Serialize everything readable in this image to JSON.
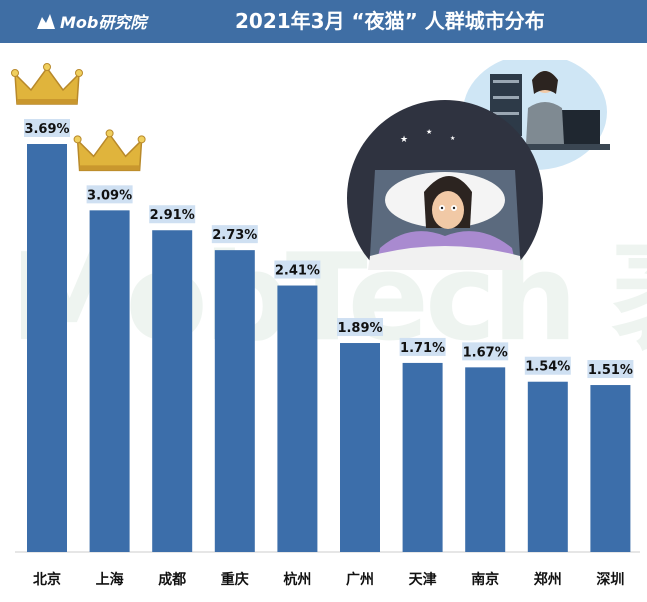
{
  "header": {
    "logo_text": "Mob研究院",
    "title": "2021年3月 “夜猫” 人群城市分布"
  },
  "watermark": {
    "text": "MobTech 袤博"
  },
  "colors": {
    "bar": "#3c6eaa",
    "header": "#3f6ea4",
    "label_bg": "#cfe0f2",
    "crown": "#e0b43c"
  },
  "chart_data": {
    "type": "bar",
    "title": "2021年3月 “夜猫” 人群城市分布",
    "categories": [
      "北京",
      "上海",
      "成都",
      "重庆",
      "杭州",
      "广州",
      "天津",
      "南京",
      "郑州",
      "深圳"
    ],
    "values": [
      3.69,
      3.09,
      2.91,
      2.73,
      2.41,
      1.89,
      1.71,
      1.67,
      1.54,
      1.51
    ],
    "value_labels": [
      "3.69%",
      "3.09%",
      "2.91%",
      "2.73%",
      "2.41%",
      "1.89%",
      "1.71%",
      "1.67%",
      "1.54%",
      "1.51%"
    ],
    "crowned": [
      0,
      1
    ],
    "xlabel": "",
    "ylabel": "",
    "ylim": [
      0,
      3.69
    ],
    "grid": false,
    "legend": "none"
  }
}
